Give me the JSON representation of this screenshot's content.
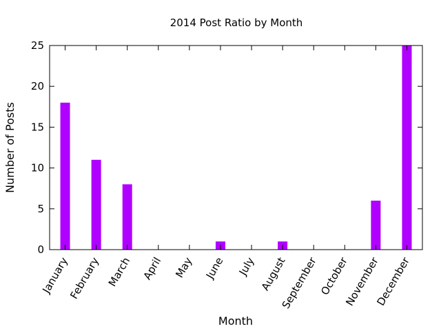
{
  "chart_data": {
    "type": "bar",
    "title": "2014 Post Ratio by Month",
    "xlabel": "Month",
    "ylabel": "Number of Posts",
    "categories": [
      "January",
      "February",
      "March",
      "April",
      "May",
      "June",
      "July",
      "August",
      "September",
      "October",
      "November",
      "December"
    ],
    "values": [
      18,
      11,
      8,
      0,
      0,
      1,
      0,
      1,
      0,
      0,
      6,
      25
    ],
    "ylim": [
      0,
      25
    ],
    "yticks": [
      0,
      5,
      10,
      15,
      20,
      25
    ],
    "bar_color": "#b000ff",
    "grid": false,
    "legend": "none"
  }
}
